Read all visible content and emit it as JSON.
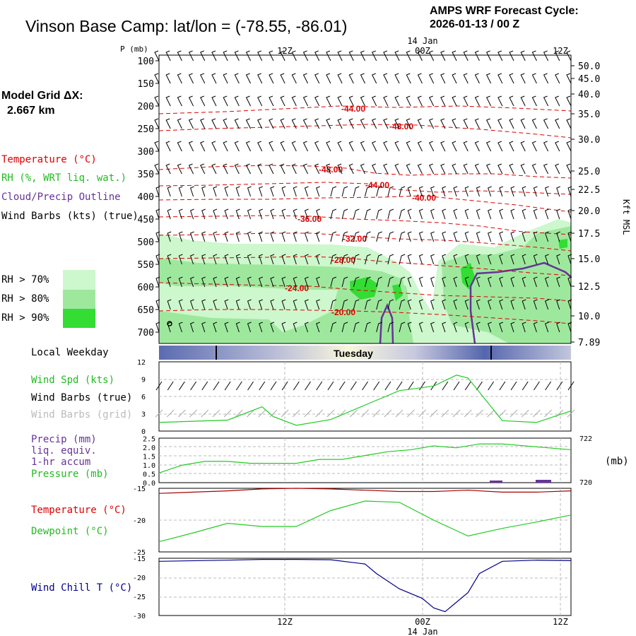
{
  "header": {
    "title": "Vinson Base Camp:  lat/lon = (-78.55, -86.01)",
    "cycle_line1": "AMPS WRF Forecast Cycle:",
    "cycle_line2": "2026-01-13 / 00  Z",
    "grid_line1": "Model Grid ΔX:",
    "grid_line2": "2.667 km"
  },
  "time_axis": {
    "labels": [
      "12Z",
      "00Z",
      "12Z"
    ],
    "date_label": "14 Jan"
  },
  "legend": {
    "temperature": "Temperature (°C)",
    "rh": "RH (%, WRT liq. wat.)",
    "cloud": "Cloud/Precip Outline",
    "wind": "Wind Barbs (kts) (true)",
    "rh70": "RH > 70%",
    "rh80": "RH > 80%",
    "rh90": "RH > 90%",
    "weekday_label": "Local Weekday",
    "weekday": "Tuesday",
    "wind_spd": "Wind Spd (kts)",
    "wind_true": "Wind Barbs (true)",
    "wind_grid": "Wind Barbs (grid)",
    "precip1": "Precip (mm)",
    "precip2": "liq. equiv.",
    "precip3": "1-hr accum",
    "pressure": "Pressure (mb)",
    "mb_unit": "(mb)",
    "temp2": "Temperature (°C)",
    "dewpoint": "Dewpoint (°C)",
    "windchill": "Wind Chill T (°C)"
  },
  "colors": {
    "temperature": "#dd0000",
    "rh_label": "#22bb22",
    "cloud": "#663399",
    "wind_chill": "#00008b",
    "rh70": "#cdf7cd",
    "rh80": "#9ee89e",
    "rh90": "#33dd33",
    "pressure": "#22cc22"
  },
  "chart_data": [
    {
      "type": "contour",
      "title": "Cross-section: pressure vs time",
      "ylabel": "P (mb)",
      "yticks": [
        100,
        150,
        200,
        250,
        300,
        350,
        400,
        450,
        500,
        550,
        600,
        650,
        700
      ],
      "right_label": "Kft MSL",
      "right_ticks": [
        "50.0",
        "45.0",
        "40.0",
        "35.0",
        "30.0",
        "25.0",
        "22.5",
        "20.0",
        "17.5",
        "15.0",
        "12.5",
        "10.0",
        "7.89"
      ],
      "temperature_contour_labels": [
        "-44.00",
        "-48.00",
        "-48.00",
        "-44.00",
        "-40.00",
        "-36.00",
        "-32.00",
        "-28.00",
        "-24.00",
        "-20.00"
      ]
    },
    {
      "type": "line",
      "title": "Wind Spd (kts)",
      "x_hours": [
        0,
        3,
        6,
        9,
        10,
        12,
        15,
        18,
        21,
        24,
        26,
        27,
        30,
        33,
        36
      ],
      "values": [
        1.5,
        1.7,
        1.9,
        4.2,
        2.5,
        1.0,
        2.0,
        4.5,
        7.0,
        7.8,
        9.7,
        9.2,
        1.8,
        1.5,
        3.5
      ],
      "ylim": [
        0,
        12
      ],
      "yticks": [
        "0",
        "3",
        "6",
        "9",
        "12"
      ]
    },
    {
      "type": "line",
      "title": "Pressure (mb) / Precip (mm)",
      "left_ticks": [
        "0.0",
        "0.5",
        "1.0",
        "1.5",
        "2.0",
        "2.5"
      ],
      "right_ticks": [
        "720",
        "722"
      ],
      "x_hours": [
        0,
        2,
        4,
        6,
        8,
        10,
        12,
        14,
        16,
        18,
        20,
        22,
        24,
        26,
        28,
        30,
        32,
        34,
        36
      ],
      "pressure_mb": [
        720.5,
        720.9,
        721.1,
        721.1,
        721.0,
        721.0,
        721.0,
        721.2,
        721.2,
        721.4,
        721.6,
        721.7,
        721.9,
        721.8,
        722.0,
        722.0,
        721.9,
        721.8,
        721.7
      ],
      "ylim_pressure": [
        720,
        722.3
      ]
    },
    {
      "type": "line",
      "title": "Temperature / Dewpoint (°C)",
      "yticks": [
        "-15",
        "-20",
        "-25"
      ],
      "ylim": [
        -25,
        -15
      ],
      "x_hours": [
        0,
        3,
        6,
        9,
        12,
        15,
        18,
        21,
        24,
        27,
        30,
        33,
        36
      ],
      "series": [
        {
          "name": "Temperature",
          "values": [
            -15.8,
            -15.6,
            -15.4,
            -15.1,
            -15.0,
            -15.1,
            -15.3,
            -15.5,
            -15.5,
            -15.3,
            -15.6,
            -15.6,
            -15.4
          ]
        },
        {
          "name": "Dewpoint",
          "values": [
            -23.4,
            -22.0,
            -20.5,
            -21.0,
            -21.0,
            -18.5,
            -17.0,
            -17.2,
            -20.0,
            -22.5,
            -21.3,
            -20.3,
            -19.2
          ]
        }
      ]
    },
    {
      "type": "line",
      "title": "Wind Chill T (°C)",
      "yticks": [
        "-15",
        "-20",
        "-25",
        "-30"
      ],
      "ylim": [
        -30,
        -15
      ],
      "x_hours": [
        0,
        6,
        9,
        12,
        15,
        18,
        19,
        21,
        23,
        24,
        25,
        27,
        28,
        30,
        33,
        36
      ],
      "values": [
        -15.8,
        -15.5,
        -15.3,
        -15.3,
        -15.4,
        -16.5,
        -19.0,
        -23.0,
        -25.5,
        -28.0,
        -29.0,
        -24.0,
        -19.0,
        -15.8,
        -15.5,
        -15.6
      ]
    }
  ]
}
